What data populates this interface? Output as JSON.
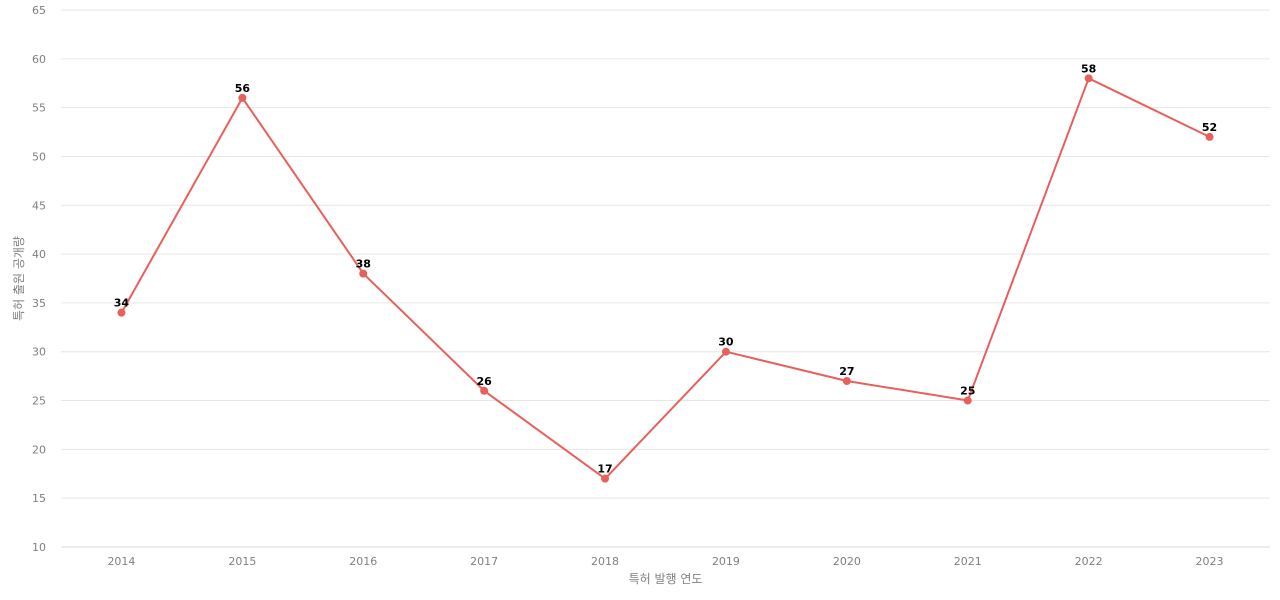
{
  "chart_data": {
    "type": "line",
    "title": "",
    "xlabel": "특허 발행 연도",
    "ylabel": "특허 출원 공개량",
    "x": [
      "2014",
      "2015",
      "2016",
      "2017",
      "2018",
      "2019",
      "2020",
      "2021",
      "2022",
      "2023"
    ],
    "series": [
      {
        "values": [
          34,
          56,
          38,
          26,
          17,
          30,
          27,
          25,
          58,
          52
        ],
        "color": "#e8605c"
      }
    ],
    "ylim": [
      10,
      65
    ],
    "yticks": [
      10,
      15,
      20,
      25,
      30,
      35,
      40,
      45,
      50,
      55,
      60,
      65
    ],
    "grid": true,
    "data_labels": true
  }
}
